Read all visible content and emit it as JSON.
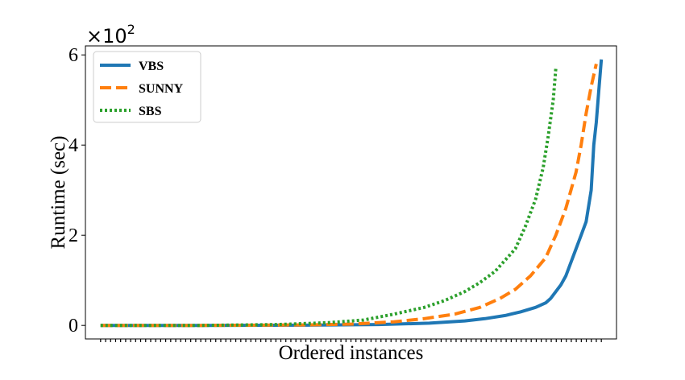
{
  "chart_data": {
    "type": "line",
    "xlabel": "Ordered instances",
    "ylabel": "Runtime (sec)",
    "y_multiplier": {
      "base": "×10",
      "exponent": "2"
    },
    "ylim": [
      -0.3,
      6.2
    ],
    "y_ticks": [
      0,
      2,
      4,
      6
    ],
    "y_tick_labels": [
      "0",
      "2",
      "4",
      "6"
    ],
    "x_ticks": "one per instance, unlabeled",
    "legend": {
      "position": "top-left"
    },
    "series": [
      {
        "name": "VBS",
        "color": "#1f77b4",
        "style": "solid",
        "points": [
          [
            0,
            0
          ],
          [
            20,
            0
          ],
          [
            40,
            0.005
          ],
          [
            55,
            0.02
          ],
          [
            65,
            0.05
          ],
          [
            72,
            0.1
          ],
          [
            76,
            0.15
          ],
          [
            80,
            0.22
          ],
          [
            83,
            0.3
          ],
          [
            86,
            0.4
          ],
          [
            88,
            0.5
          ],
          [
            89,
            0.6
          ],
          [
            90,
            0.75
          ],
          [
            91,
            0.9
          ],
          [
            92,
            1.1
          ],
          [
            93,
            1.4
          ],
          [
            94,
            1.7
          ],
          [
            95,
            2.0
          ],
          [
            96,
            2.3
          ],
          [
            97,
            3.0
          ],
          [
            97.5,
            4.0
          ],
          [
            98,
            4.5
          ],
          [
            98.5,
            5.2
          ],
          [
            99,
            5.9
          ]
        ]
      },
      {
        "name": "SUNNY",
        "color": "#ff7f0e",
        "style": "dashed",
        "points": [
          [
            0,
            0
          ],
          [
            20,
            0
          ],
          [
            40,
            0.01
          ],
          [
            50,
            0.03
          ],
          [
            58,
            0.08
          ],
          [
            64,
            0.15
          ],
          [
            70,
            0.25
          ],
          [
            75,
            0.4
          ],
          [
            79,
            0.6
          ],
          [
            82,
            0.8
          ],
          [
            85,
            1.1
          ],
          [
            88,
            1.5
          ],
          [
            90,
            2.0
          ],
          [
            92,
            2.6
          ],
          [
            94,
            3.4
          ],
          [
            95,
            4.0
          ],
          [
            96,
            4.7
          ],
          [
            97,
            5.3
          ],
          [
            98,
            5.8
          ]
        ]
      },
      {
        "name": "SBS",
        "color": "#2ca02c",
        "style": "dotted",
        "points": [
          [
            0,
            0
          ],
          [
            20,
            0
          ],
          [
            35,
            0.02
          ],
          [
            45,
            0.06
          ],
          [
            52,
            0.12
          ],
          [
            58,
            0.25
          ],
          [
            64,
            0.4
          ],
          [
            68,
            0.55
          ],
          [
            72,
            0.75
          ],
          [
            75,
            0.95
          ],
          [
            78,
            1.2
          ],
          [
            82,
            1.7
          ],
          [
            84,
            2.2
          ],
          [
            86,
            2.8
          ],
          [
            87.5,
            3.5
          ],
          [
            88.5,
            4.2
          ],
          [
            89.5,
            5.0
          ],
          [
            90,
            5.7
          ]
        ]
      }
    ]
  }
}
